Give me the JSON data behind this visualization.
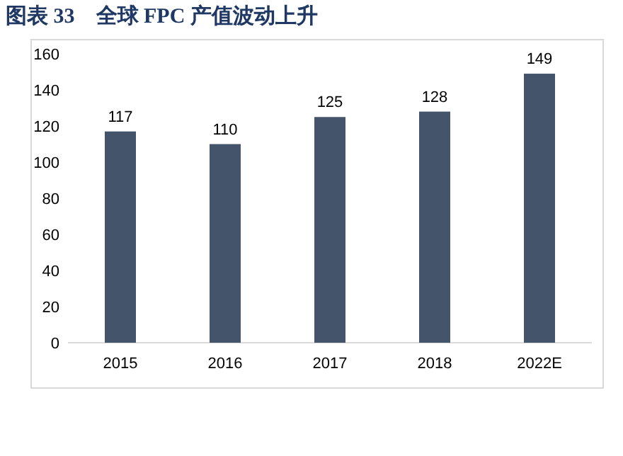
{
  "chart_data": {
    "type": "bar",
    "title": "图表 33　全球 FPC 产值波动上升",
    "categories": [
      "2015",
      "2016",
      "2017",
      "2018",
      "2022E"
    ],
    "values": [
      117,
      110,
      125,
      128,
      149
    ],
    "color": "#44546a",
    "ylim": [
      0,
      160
    ],
    "yticks": [
      0,
      20,
      40,
      60,
      80,
      100,
      120,
      140,
      160
    ],
    "data_labels": true
  }
}
